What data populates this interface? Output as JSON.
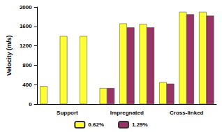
{
  "chart_data": {
    "type": "bar",
    "categories": [
      null,
      "Support",
      null,
      null,
      "Impregnated",
      null,
      null,
      "Cross-linked",
      null
    ],
    "series": [
      {
        "name": "0.62%",
        "color": "#ffff33",
        "values": [
          370,
          1400,
          1400,
          330,
          1660,
          1650,
          450,
          1900,
          1900
        ]
      },
      {
        "name": "1.29%",
        "color": "#993366",
        "values": [
          null,
          null,
          null,
          330,
          1580,
          1580,
          420,
          1850,
          1820
        ]
      }
    ],
    "y_label": "Velocity (m/s)",
    "ylim": [
      0,
      2000
    ],
    "yticks": [
      0,
      400,
      800,
      1200,
      1600,
      2000
    ],
    "grid": false,
    "legend": "bottom"
  }
}
